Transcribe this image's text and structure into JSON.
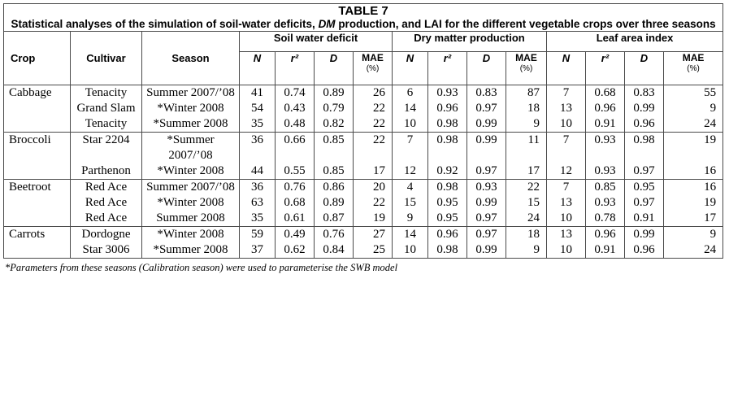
{
  "table": {
    "number": "TABLE 7",
    "caption_parts": [
      "Statistical analyses of the simulation of soil-water deficits, ",
      "DM",
      " production, and LAI for the different vegetable crops over three seasons"
    ],
    "headers": {
      "crop": "Crop",
      "cultivar": "Cultivar",
      "season": "Season",
      "groups": [
        "Soil water deficit",
        "Dry matter production",
        "Leaf area index"
      ],
      "stats": {
        "n": "N",
        "r2": "r²",
        "d": "D",
        "mae": "MAE",
        "mae_unit": "(%)"
      }
    },
    "rows": [
      {
        "crop": "Cabbage",
        "cultivar": "Tenacity",
        "season": "Summer 2007/’08",
        "swd": [
          "41",
          "0.74",
          "0.89",
          "26"
        ],
        "dm": [
          "6",
          "0.93",
          "0.83",
          "87"
        ],
        "lai": [
          "7",
          "0.68",
          "0.83",
          "55"
        ]
      },
      {
        "crop": "",
        "cultivar": "Grand Slam",
        "season": "*Winter 2008",
        "swd": [
          "54",
          "0.43",
          "0.79",
          "22"
        ],
        "dm": [
          "14",
          "0.96",
          "0.97",
          "18"
        ],
        "lai": [
          "13",
          "0.96",
          "0.99",
          "9"
        ]
      },
      {
        "crop": "",
        "cultivar": "Tenacity",
        "season": "*Summer 2008",
        "swd": [
          "35",
          "0.48",
          "0.82",
          "22"
        ],
        "dm": [
          "10",
          "0.98",
          "0.99",
          "9"
        ],
        "lai": [
          "10",
          "0.91",
          "0.96",
          "24"
        ]
      },
      {
        "crop": "Broccoli",
        "cultivar": "Star 2204",
        "season": "*Summer 2007/’08",
        "swd": [
          "36",
          "0.66",
          "0.85",
          "22"
        ],
        "dm": [
          "7",
          "0.98",
          "0.99",
          "11"
        ],
        "lai": [
          "7",
          "0.93",
          "0.98",
          "19"
        ]
      },
      {
        "crop": "",
        "cultivar": "Parthenon",
        "season": "*Winter 2008",
        "swd": [
          "44",
          "0.55",
          "0.85",
          "17"
        ],
        "dm": [
          "12",
          "0.92",
          "0.97",
          "17"
        ],
        "lai": [
          "12",
          "0.93",
          "0.97",
          "16"
        ]
      },
      {
        "crop": "Beetroot",
        "cultivar": "Red Ace",
        "season": "Summer 2007/’08",
        "swd": [
          "36",
          "0.76",
          "0.86",
          "20"
        ],
        "dm": [
          "4",
          "0.98",
          "0.93",
          "22"
        ],
        "lai": [
          "7",
          "0.85",
          "0.95",
          "16"
        ]
      },
      {
        "crop": "",
        "cultivar": "Red Ace",
        "season": "*Winter 2008",
        "swd": [
          "63",
          "0.68",
          "0.89",
          "22"
        ],
        "dm": [
          "15",
          "0.95",
          "0.99",
          "15"
        ],
        "lai": [
          "13",
          "0.93",
          "0.97",
          "19"
        ]
      },
      {
        "crop": "",
        "cultivar": "Red Ace",
        "season": "Summer 2008",
        "swd": [
          "35",
          "0.61",
          "0.87",
          "19"
        ],
        "dm": [
          "9",
          "0.95",
          "0.97",
          "24"
        ],
        "lai": [
          "10",
          "0.78",
          "0.91",
          "17"
        ]
      },
      {
        "crop": "Carrots",
        "cultivar": "Dordogne",
        "season": "*Winter 2008",
        "swd": [
          "59",
          "0.49",
          "0.76",
          "27"
        ],
        "dm": [
          "14",
          "0.96",
          "0.97",
          "18"
        ],
        "lai": [
          "13",
          "0.96",
          "0.99",
          "9"
        ]
      },
      {
        "crop": "",
        "cultivar": "Star 3006",
        "season": "*Summer 2008",
        "swd": [
          "37",
          "0.62",
          "0.84",
          "25"
        ],
        "dm": [
          "10",
          "0.98",
          "0.99",
          "9"
        ],
        "lai": [
          "10",
          "0.91",
          "0.96",
          "24"
        ]
      }
    ],
    "footnote": "*Parameters from these seasons (Calibration season) were used to parameterise the SWB model"
  }
}
